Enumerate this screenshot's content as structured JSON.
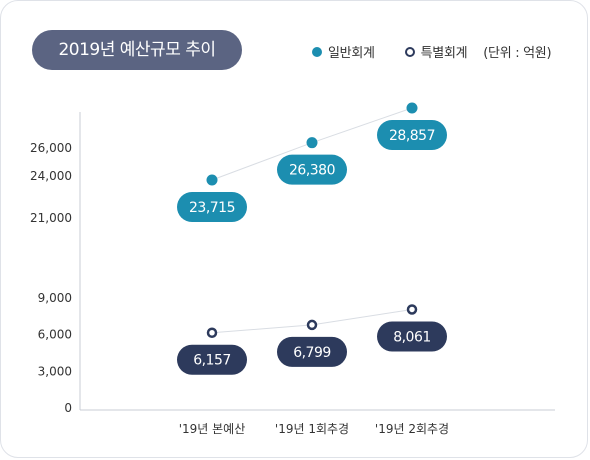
{
  "title": "2019년 예산규모 추이",
  "legend": {
    "general": "일반회계",
    "special": "특별회계",
    "unit": "(단위 : 억원)"
  },
  "colors": {
    "general": "#1c8eb0",
    "special": "#2d3a5c",
    "title_bg": "#5b6482"
  },
  "chart_data": {
    "type": "line",
    "title": "2019년 예산규모 추이",
    "categories": [
      "'19년 본예산",
      "'19년 1회추경",
      "'19년 2회추경"
    ],
    "series": [
      {
        "name": "일반회계",
        "values": [
          23715,
          26380,
          28857
        ],
        "labels": [
          "23,715",
          "26,380",
          "28,857"
        ]
      },
      {
        "name": "특별회계",
        "values": [
          6157,
          6799,
          8061
        ],
        "labels": [
          "6,157",
          "6,799",
          "8,061"
        ]
      }
    ],
    "yticks_upper": [
      "21,000",
      "24,000",
      "26,000"
    ],
    "yticks_lower": [
      "0",
      "3,000",
      "6,000",
      "9,000"
    ],
    "y_axis_break": true,
    "xlabel": "",
    "ylabel": "",
    "legend_position": "top-right"
  }
}
